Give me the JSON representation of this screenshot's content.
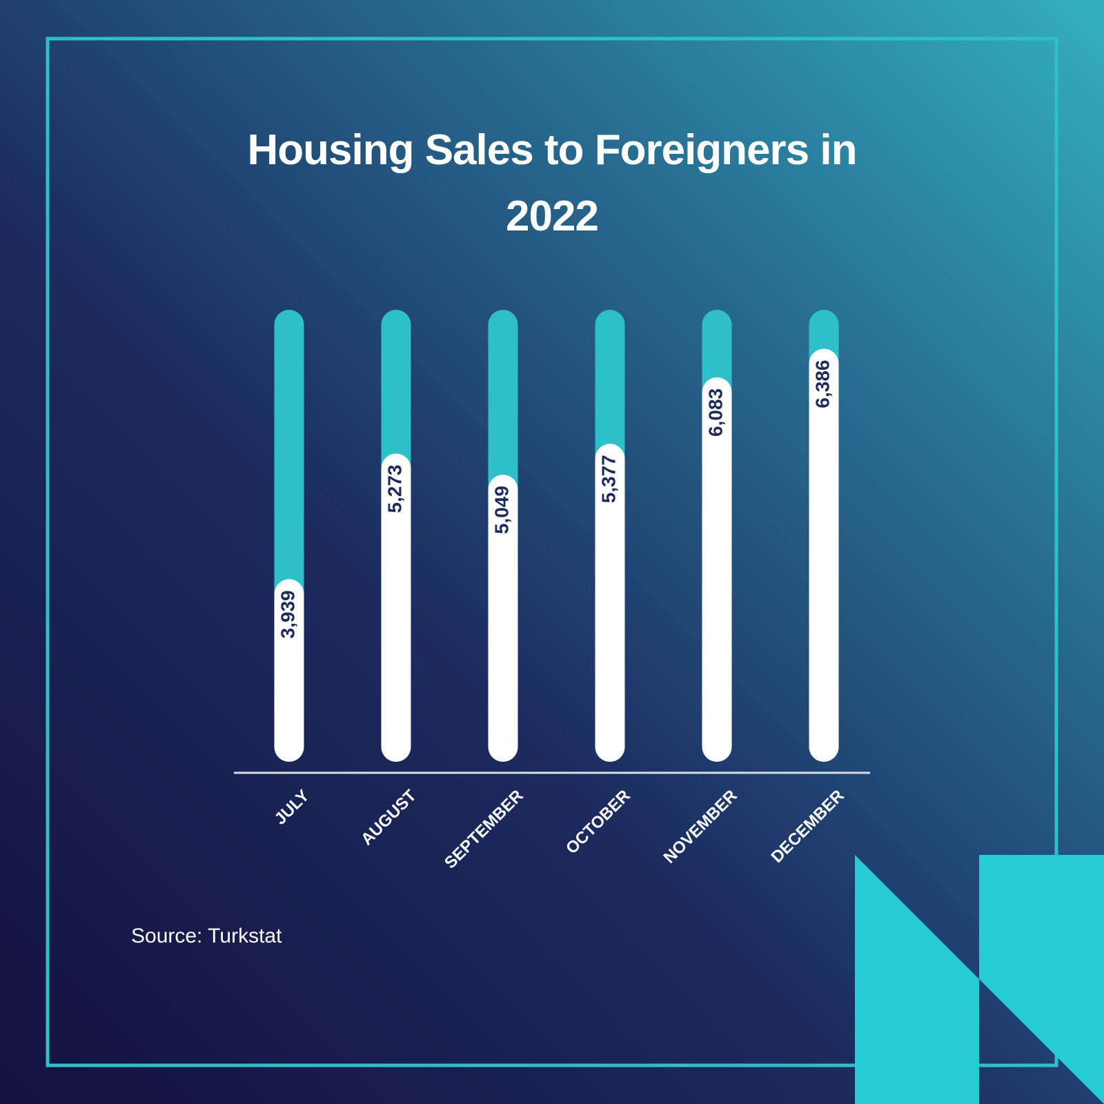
{
  "chart_data": {
    "type": "bar",
    "title": "Housing Sales to Foreigners in 2022",
    "categories": [
      "JULY",
      "AUGUST",
      "SEPTEMBER",
      "OCTOBER",
      "NOVEMBER",
      "DECEMBER"
    ],
    "values": [
      3939,
      5273,
      5049,
      5377,
      6083,
      6386
    ],
    "value_labels": [
      "3,939",
      "5,273",
      "5,049",
      "5,377",
      "6,083",
      "6,386"
    ],
    "color": "#ffffff",
    "track_color": "#2ec0c9",
    "ylim": [
      2000,
      6800
    ],
    "source": "Source: Turkstat"
  }
}
